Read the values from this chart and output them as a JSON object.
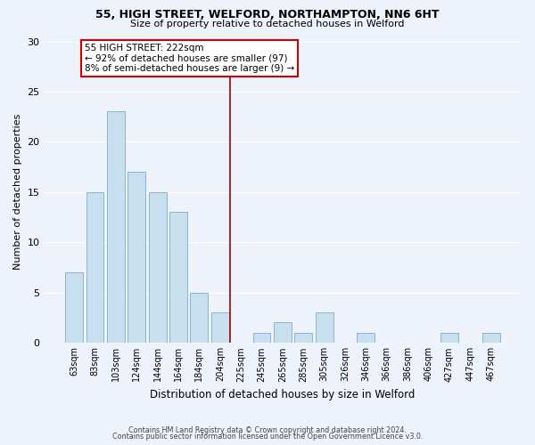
{
  "title1": "55, HIGH STREET, WELFORD, NORTHAMPTON, NN6 6HT",
  "title2": "Size of property relative to detached houses in Welford",
  "xlabel": "Distribution of detached houses by size in Welford",
  "ylabel": "Number of detached properties",
  "bar_labels": [
    "63sqm",
    "83sqm",
    "103sqm",
    "124sqm",
    "144sqm",
    "164sqm",
    "184sqm",
    "204sqm",
    "225sqm",
    "245sqm",
    "265sqm",
    "285sqm",
    "305sqm",
    "326sqm",
    "346sqm",
    "366sqm",
    "386sqm",
    "406sqm",
    "427sqm",
    "447sqm",
    "467sqm"
  ],
  "bar_values": [
    7,
    15,
    23,
    17,
    15,
    13,
    5,
    3,
    0,
    1,
    2,
    1,
    3,
    0,
    1,
    0,
    0,
    0,
    1,
    0,
    1
  ],
  "bar_color": "#c8dff0",
  "bar_edge_color": "#8ab4d4",
  "vline_color": "#aa0000",
  "annotation_title": "55 HIGH STREET: 222sqm",
  "annotation_line1": "← 92% of detached houses are smaller (97)",
  "annotation_line2": "8% of semi-detached houses are larger (9) →",
  "annotation_box_color": "#ffffff",
  "annotation_box_edge": "#cc0000",
  "ylim": [
    0,
    30
  ],
  "yticks": [
    0,
    5,
    10,
    15,
    20,
    25,
    30
  ],
  "footer1": "Contains HM Land Registry data © Crown copyright and database right 2024.",
  "footer2": "Contains public sector information licensed under the Open Government Licence v3.0.",
  "bg_color": "#eef2fb",
  "grid_color": "#ffffff"
}
